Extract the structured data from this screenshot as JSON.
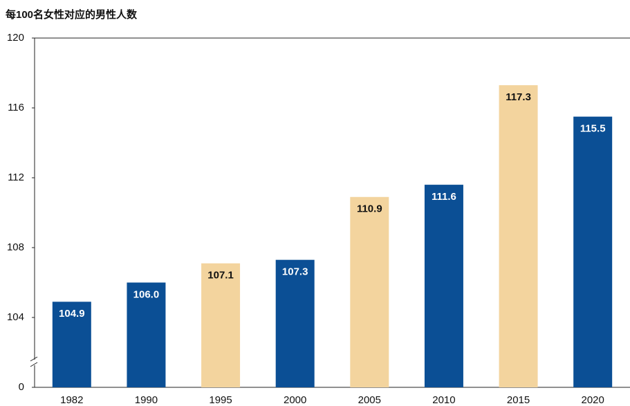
{
  "chart_data": {
    "type": "bar",
    "title": "每100名女性对应的男性人数",
    "categories": [
      "1982",
      "1990",
      "1995",
      "2000",
      "2005",
      "2010",
      "2015",
      "2020"
    ],
    "values": [
      104.9,
      106,
      107.1,
      107.3,
      110.9,
      111.6,
      117.3,
      115.5
    ],
    "value_labels": [
      "104.9",
      "106.0",
      "107.1",
      "107.3",
      "110.9",
      "111.6",
      "117.3",
      "115.5"
    ],
    "colors": [
      "#0b4f95",
      "#0b4f95",
      "#f3d49e",
      "#0b4f95",
      "#f3d49e",
      "#0b4f95",
      "#f3d49e",
      "#0b4f95"
    ],
    "ylim": [
      100,
      120
    ],
    "yticks": [
      {
        "value": 100,
        "label": "0"
      },
      104,
      108,
      112,
      116,
      120
    ],
    "axis_break": true,
    "grid": false
  }
}
